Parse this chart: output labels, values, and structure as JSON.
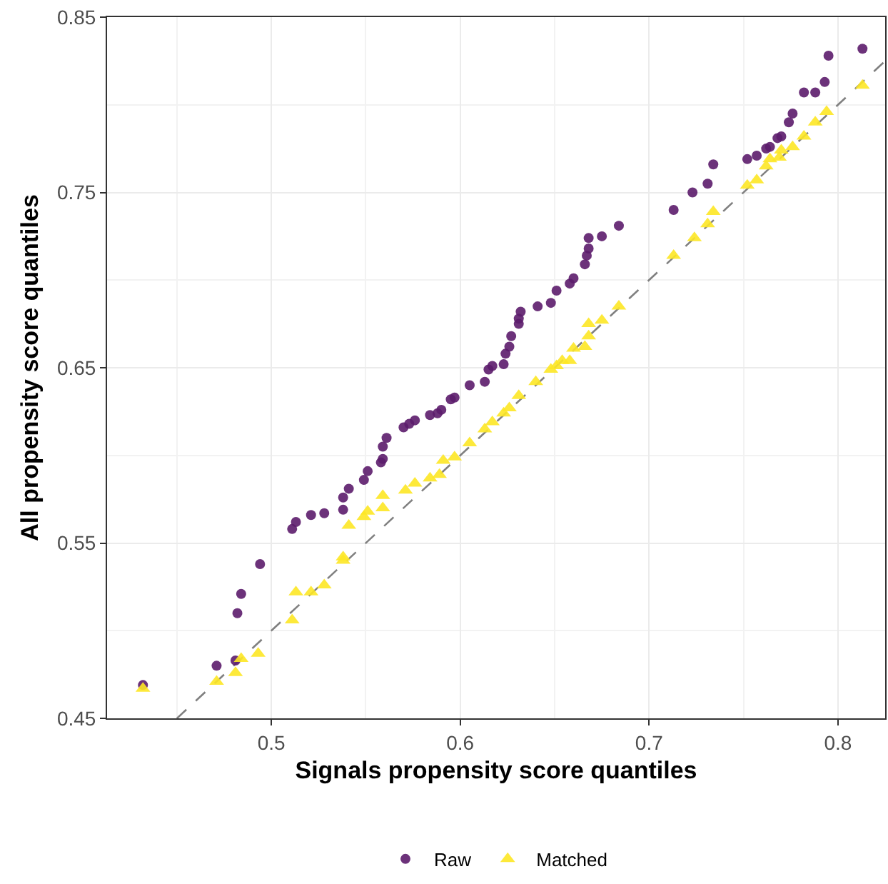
{
  "chart_data": {
    "type": "scatter",
    "xlabel": "Signals propensity score quantiles",
    "ylabel": "All propensity score quantiles",
    "xlim": [
      0.413,
      0.825
    ],
    "ylim": [
      0.45,
      0.85
    ],
    "xticks": [
      {
        "value": 0.45,
        "label": null
      },
      0.5,
      {
        "value": 0.55,
        "label": null
      },
      0.6,
      {
        "value": 0.65,
        "label": null
      },
      0.7,
      {
        "value": 0.75,
        "label": null
      },
      0.8
    ],
    "yticks": [
      0.45,
      {
        "value": 0.5,
        "label": null
      },
      0.55,
      {
        "value": 0.6,
        "label": null
      },
      0.65,
      {
        "value": 0.7,
        "label": null
      },
      0.75,
      {
        "value": 0.8,
        "label": null
      },
      0.85
    ],
    "grid": true,
    "legend": "bottom",
    "series": [
      {
        "name": null,
        "type": "line",
        "color": "#808080",
        "line_style": "dashed",
        "marker": "none",
        "x": [
          0.45,
          0.825
        ],
        "values": [
          0.45,
          0.825
        ]
      },
      {
        "name": "Raw",
        "color": "#5c1c6c",
        "marker": "circle",
        "x": [
          0.432,
          0.471,
          0.481,
          0.482,
          0.484,
          0.494,
          0.511,
          0.513,
          0.521,
          0.528,
          0.538,
          0.538,
          0.541,
          0.549,
          0.551,
          0.558,
          0.559,
          0.559,
          0.561,
          0.57,
          0.573,
          0.576,
          0.584,
          0.588,
          0.59,
          0.595,
          0.597,
          0.605,
          0.613,
          0.615,
          0.617,
          0.623,
          0.624,
          0.626,
          0.627,
          0.631,
          0.631,
          0.632,
          0.641,
          0.648,
          0.651,
          0.658,
          0.66,
          0.666,
          0.667,
          0.668,
          0.668,
          0.675,
          0.684,
          0.713,
          0.723,
          0.731,
          0.734,
          0.752,
          0.757,
          0.762,
          0.764,
          0.768,
          0.77,
          0.774,
          0.776,
          0.782,
          0.788,
          0.793,
          0.795,
          0.813
        ],
        "values": [
          0.469,
          0.48,
          0.483,
          0.51,
          0.521,
          0.538,
          0.558,
          0.562,
          0.566,
          0.567,
          0.569,
          0.576,
          0.581,
          0.586,
          0.591,
          0.596,
          0.598,
          0.605,
          0.61,
          0.616,
          0.618,
          0.62,
          0.623,
          0.624,
          0.626,
          0.632,
          0.633,
          0.64,
          0.642,
          0.649,
          0.651,
          0.652,
          0.658,
          0.662,
          0.668,
          0.675,
          0.678,
          0.682,
          0.685,
          0.687,
          0.694,
          0.698,
          0.701,
          0.709,
          0.714,
          0.718,
          0.724,
          0.725,
          0.731,
          0.74,
          0.75,
          0.755,
          0.766,
          0.769,
          0.771,
          0.775,
          0.776,
          0.781,
          0.782,
          0.79,
          0.795,
          0.807,
          0.807,
          0.813,
          0.828,
          0.832
        ]
      },
      {
        "name": "Matched",
        "color": "#fde725",
        "marker": "triangle",
        "x": [
          0.432,
          0.471,
          0.481,
          0.484,
          0.493,
          0.511,
          0.513,
          0.521,
          0.528,
          0.538,
          0.538,
          0.541,
          0.549,
          0.551,
          0.559,
          0.559,
          0.571,
          0.576,
          0.584,
          0.589,
          0.591,
          0.597,
          0.605,
          0.613,
          0.617,
          0.623,
          0.626,
          0.631,
          0.64,
          0.648,
          0.651,
          0.654,
          0.658,
          0.66,
          0.666,
          0.668,
          0.668,
          0.675,
          0.684,
          0.713,
          0.724,
          0.731,
          0.734,
          0.752,
          0.757,
          0.762,
          0.764,
          0.769,
          0.77,
          0.776,
          0.782,
          0.788,
          0.794,
          0.813
        ],
        "values": [
          0.467,
          0.471,
          0.476,
          0.484,
          0.487,
          0.506,
          0.522,
          0.522,
          0.526,
          0.54,
          0.542,
          0.56,
          0.565,
          0.568,
          0.57,
          0.577,
          0.58,
          0.584,
          0.587,
          0.589,
          0.597,
          0.599,
          0.607,
          0.615,
          0.619,
          0.624,
          0.627,
          0.634,
          0.642,
          0.649,
          0.651,
          0.654,
          0.654,
          0.661,
          0.662,
          0.668,
          0.675,
          0.677,
          0.685,
          0.714,
          0.724,
          0.732,
          0.739,
          0.754,
          0.757,
          0.765,
          0.769,
          0.77,
          0.774,
          0.776,
          0.782,
          0.79,
          0.796,
          0.811
        ]
      }
    ]
  }
}
